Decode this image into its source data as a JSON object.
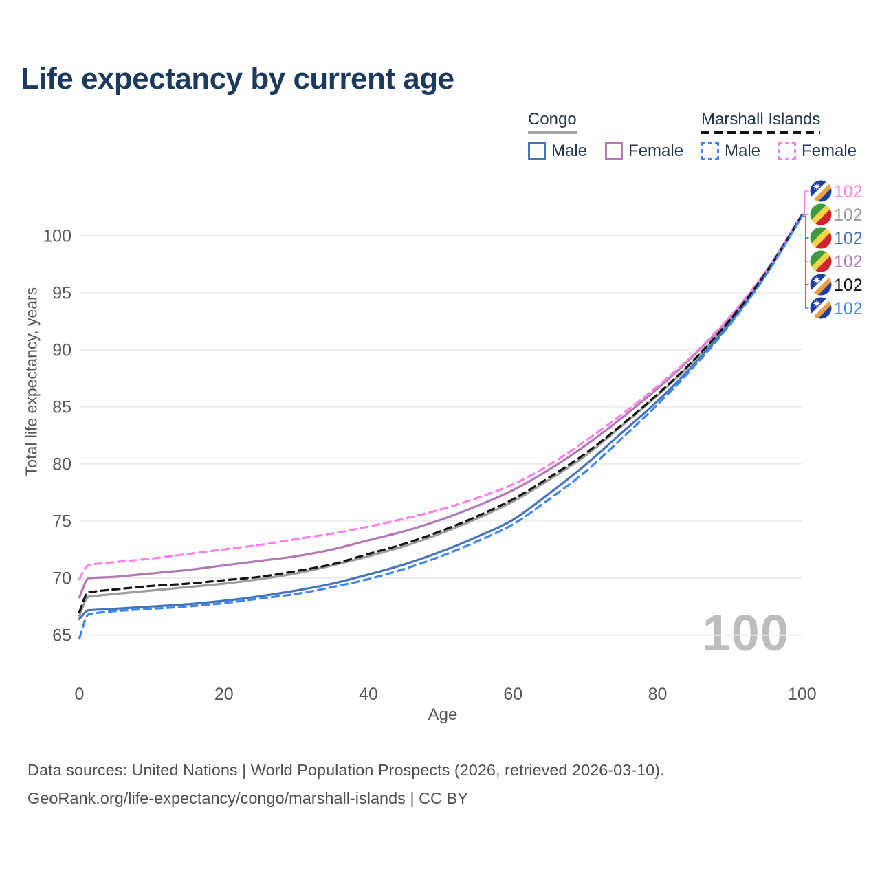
{
  "title": "Life expectancy by current age",
  "watermark": "100",
  "legend": {
    "groups": [
      {
        "id": "congo",
        "label": "Congo",
        "style": "solid",
        "underline_color": "#a8a8a8",
        "items": [
          {
            "id": "male",
            "label": "Male",
            "color": "#4674b8"
          },
          {
            "id": "female",
            "label": "Female",
            "color": "#b279b4"
          }
        ]
      },
      {
        "id": "marshall",
        "label": "Marshall Islands",
        "style": "dashed",
        "underline_color": "#141414",
        "items": [
          {
            "id": "male",
            "label": "Male",
            "color": "#3e86f2"
          },
          {
            "id": "female",
            "label": "Female",
            "color": "#fb80e8"
          }
        ]
      }
    ]
  },
  "footer": {
    "line1": "Data sources: United Nations | World Population Prospects (2026, retrieved 2026-03-10).",
    "line2": "GeoRank.org/life-expectancy/congo/marshall-islands | CC BY"
  },
  "chart_data": {
    "type": "line",
    "title": "Life expectancy by current age",
    "xlabel": "Age",
    "ylabel": "Total life expectancy, years",
    "xlim": [
      0,
      100
    ],
    "ylim": [
      63,
      103.5
    ],
    "xticks": [
      0,
      20,
      40,
      60,
      80,
      100
    ],
    "yticks": [
      65,
      70,
      75,
      80,
      85,
      90,
      95,
      100
    ],
    "grid": "horizontal-only",
    "legend_position": "top-right",
    "x": [
      0,
      1,
      2,
      5,
      10,
      15,
      20,
      25,
      30,
      35,
      40,
      45,
      50,
      55,
      60,
      65,
      70,
      75,
      80,
      85,
      90,
      95,
      100
    ],
    "series": [
      {
        "id": "marshall-female",
        "name": "Marshall Islands Female",
        "country": "marshall-islands",
        "sex": "female",
        "line": "dashed",
        "color": "#fb80e8",
        "end_label": "102",
        "end_label_row": 0,
        "values": [
          69.9,
          71.0,
          71.2,
          71.4,
          71.7,
          72.1,
          72.5,
          72.9,
          73.4,
          73.9,
          74.5,
          75.2,
          76.0,
          77.0,
          78.2,
          79.9,
          82.0,
          84.3,
          86.8,
          89.6,
          92.9,
          96.9,
          101.9
        ]
      },
      {
        "id": "congo-all",
        "name": "Congo",
        "country": "congo",
        "sex": "all",
        "line": "solid",
        "color": "#9c9c9c",
        "end_label": "102",
        "end_label_row": 1,
        "values": [
          66.7,
          68.2,
          68.4,
          68.6,
          68.9,
          69.2,
          69.5,
          69.9,
          70.4,
          71.1,
          71.9,
          72.8,
          73.9,
          75.2,
          76.7,
          78.6,
          80.7,
          83.3,
          86.0,
          89.0,
          92.55,
          96.7,
          101.8
        ]
      },
      {
        "id": "congo-male",
        "name": "Congo Male",
        "country": "congo",
        "sex": "male",
        "line": "solid",
        "color": "#4674b8",
        "end_label": "102",
        "end_label_row": 2,
        "values": [
          66.4,
          67.1,
          67.2,
          67.3,
          67.5,
          67.7,
          68.0,
          68.4,
          68.9,
          69.5,
          70.3,
          71.2,
          72.3,
          73.6,
          75.1,
          77.4,
          79.9,
          82.7,
          85.5,
          88.7,
          92.3,
          96.6,
          101.75
        ]
      },
      {
        "id": "congo-female",
        "name": "Congo Female",
        "country": "congo",
        "sex": "female",
        "line": "solid",
        "color": "#b279b4",
        "end_label": "102",
        "end_label_row": 3,
        "values": [
          68.3,
          69.8,
          70.0,
          70.1,
          70.4,
          70.7,
          71.1,
          71.5,
          71.9,
          72.5,
          73.3,
          74.1,
          75.1,
          76.3,
          77.7,
          79.5,
          81.6,
          84.0,
          86.6,
          89.5,
          92.8,
          96.85,
          101.85
        ]
      },
      {
        "id": "marshall-all",
        "name": "Marshall Islands",
        "country": "marshall-islands",
        "sex": "all",
        "line": "dashed",
        "color": "#141414",
        "end_label": "102",
        "end_label_row": 4,
        "values": [
          67.0,
          68.6,
          68.8,
          69.0,
          69.3,
          69.5,
          69.8,
          70.1,
          70.6,
          71.2,
          72.1,
          73.0,
          74.1,
          75.4,
          76.9,
          78.8,
          80.9,
          83.4,
          86.1,
          89.1,
          92.6,
          96.75,
          101.8
        ]
      },
      {
        "id": "marshall-male",
        "name": "Marshall Islands Male",
        "country": "marshall-islands",
        "sex": "male",
        "line": "dashed",
        "color": "#3e86f2",
        "end_label": "102",
        "end_label_row": 5,
        "values": [
          64.7,
          66.6,
          66.9,
          67.1,
          67.3,
          67.5,
          67.8,
          68.2,
          68.6,
          69.2,
          69.9,
          70.8,
          71.9,
          73.2,
          74.7,
          76.9,
          79.3,
          82.2,
          85.2,
          88.5,
          92.2,
          96.55,
          101.7
        ]
      }
    ]
  }
}
